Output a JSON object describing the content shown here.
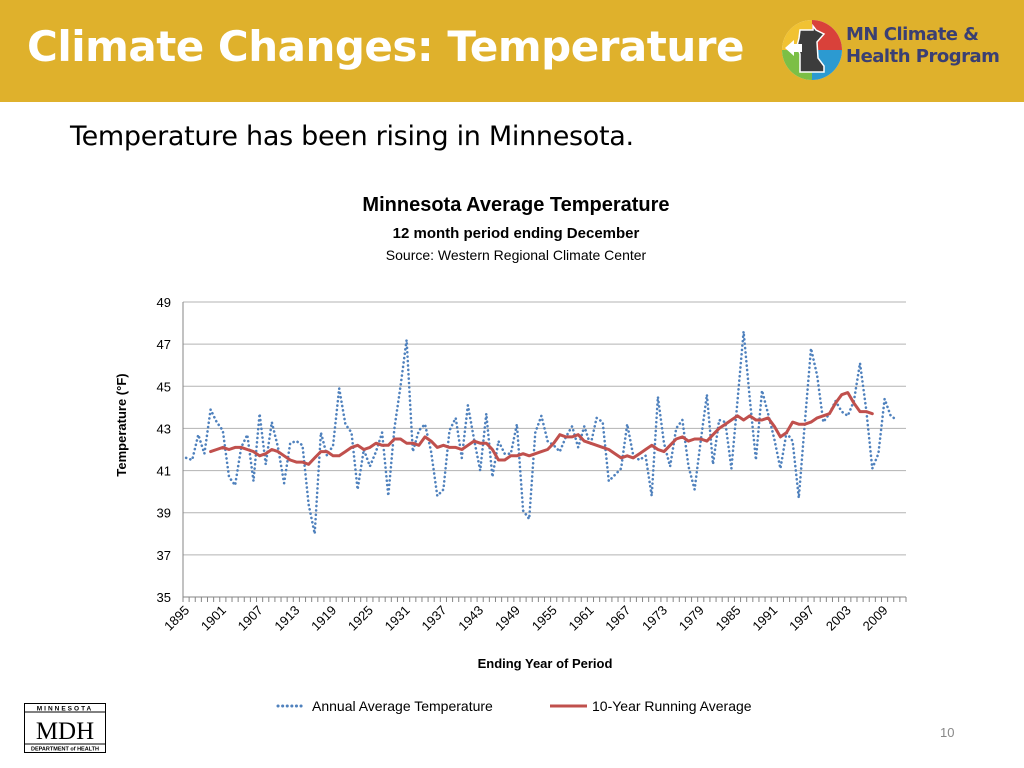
{
  "slide": {
    "title": "Climate Changes: Temperature",
    "subtitle": "Temperature has been rising in Minnesota.",
    "page_number": "10"
  },
  "logos": {
    "program": [
      "MN Climate &",
      "Health Program"
    ],
    "mdh": [
      "MINNESOTA",
      "MDH",
      "DEPARTMENT of HEALTH"
    ]
  },
  "colors": {
    "header": "#dfb12c",
    "annual_series": "#4f81bd",
    "running_series": "#c0504d"
  },
  "chart_data": {
    "type": "line",
    "title": "Minnesota Average Temperature",
    "subtitle": "12 month period ending December",
    "source": "Source: Western Regional Climate Center",
    "xlabel": "Ending Year of Period",
    "ylabel": "Temperature (°F)",
    "ylim": [
      35,
      49
    ],
    "yticks": [
      35,
      37,
      39,
      41,
      43,
      45,
      47,
      49
    ],
    "xlim": [
      1895,
      2012
    ],
    "xticks": [
      1895,
      1901,
      1907,
      1913,
      1919,
      1925,
      1931,
      1937,
      1943,
      1949,
      1955,
      1961,
      1967,
      1973,
      1979,
      1985,
      1991,
      1997,
      2003,
      2009
    ],
    "grid": "horizontal",
    "legend_position": "bottom",
    "series": [
      {
        "name": "Annual Average Temperature",
        "style": "dotted",
        "x": [
          1895,
          1896,
          1897,
          1898,
          1899,
          1900,
          1901,
          1902,
          1903,
          1904,
          1905,
          1906,
          1907,
          1908,
          1909,
          1910,
          1911,
          1912,
          1913,
          1914,
          1915,
          1916,
          1917,
          1918,
          1919,
          1920,
          1921,
          1922,
          1923,
          1924,
          1925,
          1926,
          1927,
          1928,
          1929,
          1930,
          1931,
          1932,
          1933,
          1934,
          1935,
          1936,
          1937,
          1938,
          1939,
          1940,
          1941,
          1942,
          1943,
          1944,
          1945,
          1946,
          1947,
          1948,
          1949,
          1950,
          1951,
          1952,
          1953,
          1954,
          1955,
          1956,
          1957,
          1958,
          1959,
          1960,
          1961,
          1962,
          1963,
          1964,
          1965,
          1966,
          1967,
          1968,
          1969,
          1970,
          1971,
          1972,
          1973,
          1974,
          1975,
          1976,
          1977,
          1978,
          1979,
          1980,
          1981,
          1982,
          1983,
          1984,
          1985,
          1986,
          1987,
          1988,
          1989,
          1990,
          1991,
          1992,
          1993,
          1994,
          1995,
          1996,
          1997,
          1998,
          1999,
          2000,
          2001,
          2002,
          2003,
          2004,
          2005,
          2006,
          2007,
          2008,
          2009,
          2010,
          2011
        ],
        "values": [
          41.6,
          41.5,
          42.7,
          41.8,
          43.9,
          43.3,
          42.9,
          40.7,
          40.3,
          42.1,
          42.7,
          40.5,
          43.7,
          41.3,
          43.3,
          42.1,
          40.4,
          42.3,
          42.4,
          42.2,
          39.4,
          38.0,
          42.8,
          41.7,
          42.2,
          44.9,
          43.2,
          42.8,
          40.1,
          42.0,
          41.2,
          41.9,
          42.8,
          39.8,
          43.0,
          45.0,
          47.2,
          41.9,
          42.9,
          43.2,
          41.9,
          39.8,
          40.1,
          42.9,
          43.5,
          41.6,
          44.1,
          42.5,
          41.0,
          43.7,
          40.7,
          42.4,
          41.8,
          41.8,
          43.2,
          39.1,
          38.7,
          42.8,
          43.6,
          42.4,
          42.2,
          41.9,
          42.6,
          43.1,
          42.1,
          43.1,
          42.2,
          43.5,
          43.3,
          40.5,
          40.8,
          41.1,
          43.2,
          41.7,
          41.5,
          41.7,
          39.8,
          44.5,
          42.3,
          41.2,
          43.0,
          43.4,
          41.2,
          40.1,
          42.4,
          44.6,
          41.3,
          43.4,
          43.3,
          41.1,
          44.3,
          47.6,
          44.4,
          41.5,
          44.8,
          43.7,
          42.5,
          41.1,
          42.8,
          42.4,
          39.7,
          43.3,
          46.8,
          45.5,
          43.3,
          43.7,
          44.3,
          43.8,
          43.6,
          44.3,
          46.1,
          43.9,
          41.1,
          41.8,
          44.4,
          43.6,
          43.4
        ]
      },
      {
        "name": "10-Year Running Average",
        "style": "solid",
        "x": [
          1899,
          1900,
          1901,
          1902,
          1903,
          1904,
          1905,
          1906,
          1907,
          1908,
          1909,
          1910,
          1911,
          1912,
          1913,
          1914,
          1915,
          1916,
          1917,
          1918,
          1919,
          1920,
          1921,
          1922,
          1923,
          1924,
          1925,
          1926,
          1927,
          1928,
          1929,
          1930,
          1931,
          1932,
          1933,
          1934,
          1935,
          1936,
          1937,
          1938,
          1939,
          1940,
          1941,
          1942,
          1943,
          1944,
          1945,
          1946,
          1947,
          1948,
          1949,
          1950,
          1951,
          1952,
          1953,
          1954,
          1955,
          1956,
          1957,
          1958,
          1959,
          1960,
          1961,
          1962,
          1963,
          1964,
          1965,
          1966,
          1967,
          1968,
          1969,
          1970,
          1971,
          1972,
          1973,
          1974,
          1975,
          1976,
          1977,
          1978,
          1979,
          1980,
          1981,
          1982,
          1983,
          1984,
          1985,
          1986,
          1987,
          1988,
          1989,
          1990,
          1991,
          1992,
          1993,
          1994,
          1995,
          1996,
          1997,
          1998,
          1999,
          2000,
          2001,
          2002,
          2003,
          2004,
          2005,
          2006,
          2007
        ],
        "values": [
          41.9,
          42.0,
          42.1,
          42.0,
          42.1,
          42.1,
          42.0,
          41.9,
          41.7,
          41.8,
          42.0,
          41.9,
          41.7,
          41.5,
          41.4,
          41.4,
          41.3,
          41.6,
          41.9,
          41.9,
          41.7,
          41.7,
          41.9,
          42.1,
          42.2,
          42.0,
          42.1,
          42.3,
          42.2,
          42.2,
          42.5,
          42.5,
          42.3,
          42.3,
          42.2,
          42.6,
          42.4,
          42.1,
          42.2,
          42.1,
          42.1,
          42.0,
          42.2,
          42.4,
          42.3,
          42.3,
          42.0,
          41.5,
          41.5,
          41.7,
          41.7,
          41.8,
          41.7,
          41.8,
          41.9,
          42.0,
          42.3,
          42.7,
          42.6,
          42.6,
          42.7,
          42.4,
          42.3,
          42.2,
          42.1,
          42.0,
          41.8,
          41.6,
          41.7,
          41.6,
          41.8,
          42.0,
          42.2,
          42.0,
          41.9,
          42.2,
          42.5,
          42.6,
          42.4,
          42.5,
          42.5,
          42.4,
          42.7,
          43.0,
          43.2,
          43.4,
          43.6,
          43.4,
          43.6,
          43.4,
          43.4,
          43.5,
          43.1,
          42.6,
          42.8,
          43.3,
          43.2,
          43.2,
          43.3,
          43.5,
          43.6,
          43.7,
          44.2,
          44.6,
          44.7,
          44.2,
          43.8,
          43.8,
          43.7
        ]
      }
    ]
  }
}
